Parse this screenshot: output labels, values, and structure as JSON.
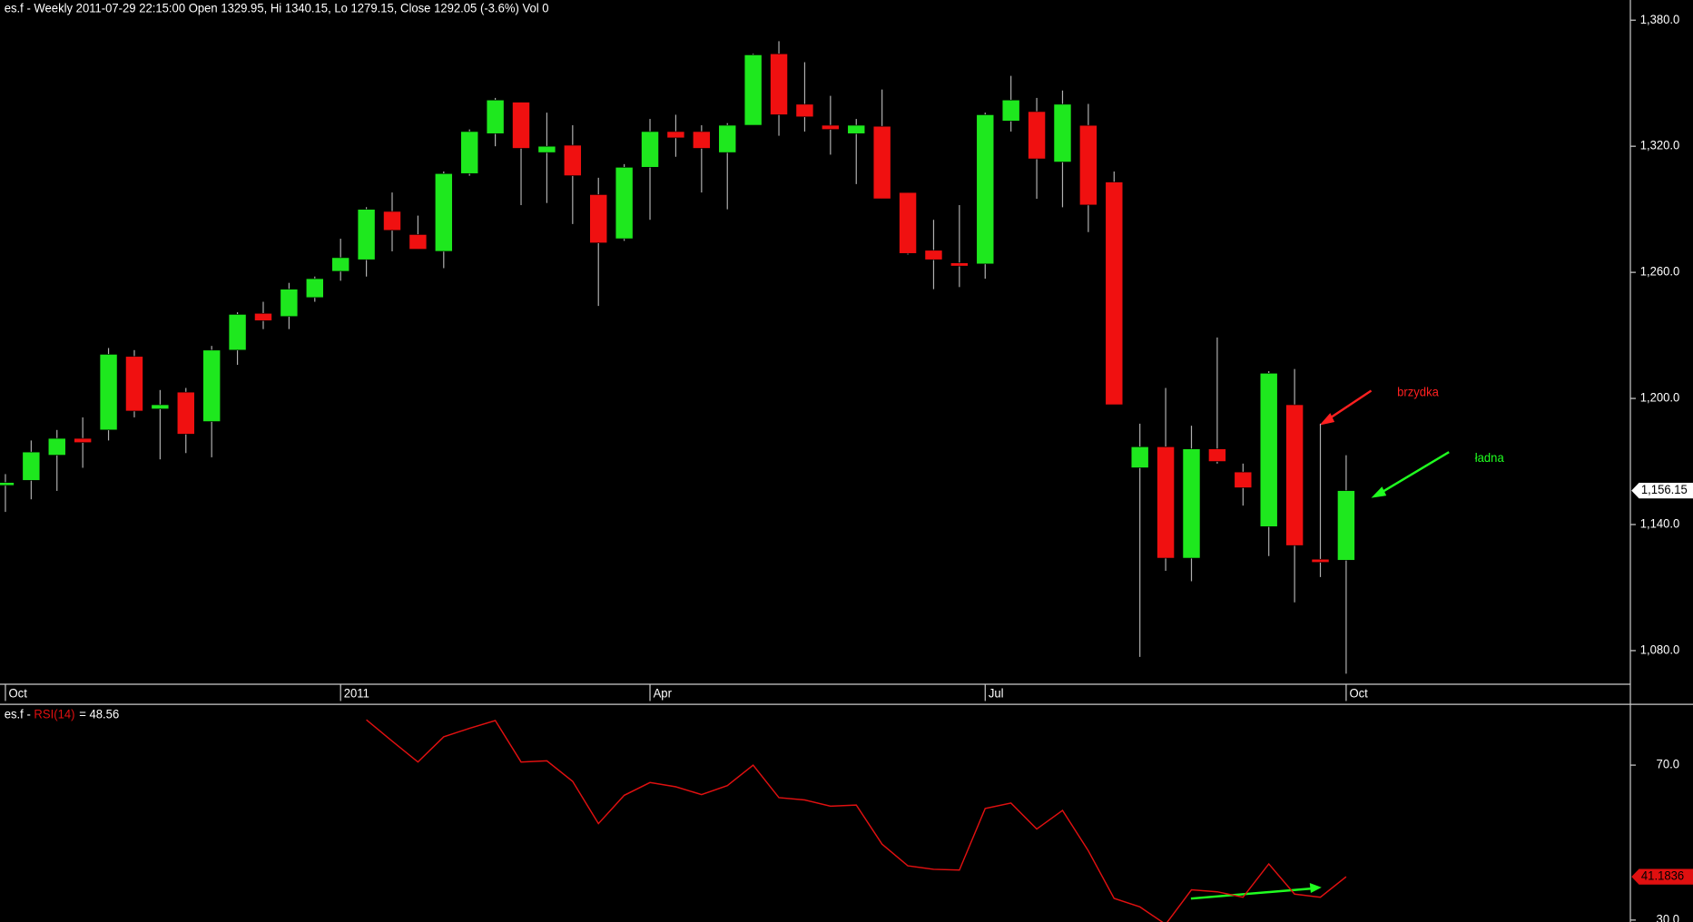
{
  "chart_data": [
    {
      "type": "candlestick",
      "title": "es.f - Weekly 2011-07-29 22:15:00 Open 1329.95, Hi 1340.15, Lo 1279.15, Close 1292.05 (-3.6%) Vol 0",
      "categories": [
        "Oct",
        null,
        null,
        null,
        null,
        null,
        null,
        null,
        null,
        null,
        null,
        null,
        null,
        "2011",
        null,
        null,
        null,
        null,
        null,
        null,
        null,
        null,
        null,
        null,
        null,
        "Apr",
        null,
        null,
        null,
        null,
        null,
        null,
        null,
        null,
        null,
        null,
        null,
        null,
        "Jul",
        null,
        null,
        null,
        null,
        null,
        null,
        null,
        null,
        null,
        null,
        null,
        null,
        null,
        "Oct"
      ],
      "open": [
        1158.6,
        1161,
        1173,
        1181,
        1185,
        1220,
        1195,
        1203,
        1189,
        1223,
        1240.5,
        1239,
        1248,
        1260.5,
        1266,
        1289,
        1278,
        1270,
        1307,
        1326,
        1341,
        1317,
        1320.5,
        1297,
        1276,
        1310,
        1327,
        1327,
        1317,
        1330,
        1364,
        1340,
        1330,
        1326,
        1329.5,
        1298,
        1270.5,
        1264.5,
        1264,
        1332,
        1336.5,
        1312.5,
        1329.95,
        1303,
        1167,
        1177,
        1124,
        1176,
        1165,
        1139,
        1197,
        1123.5,
        1123
      ],
      "high": [
        1164,
        1180,
        1185,
        1191,
        1224,
        1223,
        1204,
        1205,
        1225,
        1241,
        1246,
        1255,
        1258,
        1276,
        1291,
        1298,
        1287,
        1308,
        1328,
        1343,
        1341,
        1336,
        1330,
        1305,
        1311.5,
        1333,
        1335,
        1330,
        1331,
        1364,
        1370,
        1360,
        1344,
        1333,
        1347,
        1298,
        1285,
        1292,
        1336,
        1353.5,
        1343,
        1346.5,
        1340.15,
        1308,
        1188,
        1205,
        1187,
        1229,
        1169,
        1213,
        1214,
        1188,
        1173
      ],
      "low": [
        1146,
        1152,
        1156,
        1167,
        1180,
        1191,
        1171,
        1174,
        1172,
        1216,
        1233,
        1233,
        1246,
        1256,
        1258,
        1270,
        1271,
        1262,
        1306,
        1320,
        1292,
        1293,
        1283,
        1244,
        1275,
        1285,
        1315,
        1298,
        1290,
        1330,
        1325,
        1327,
        1316,
        1302,
        1295,
        1268.5,
        1252,
        1253,
        1257,
        1327,
        1295,
        1291,
        1279.15,
        1197,
        1077,
        1118,
        1113,
        1169,
        1149,
        1125,
        1103,
        1115,
        1069
      ],
      "close": [
        1160,
        1174.5,
        1181,
        1179,
        1221,
        1194,
        1197,
        1183,
        1223,
        1240,
        1237,
        1252,
        1257,
        1267,
        1290,
        1280,
        1271,
        1307,
        1327,
        1342,
        1319,
        1320,
        1306,
        1274,
        1310,
        1327,
        1324,
        1319,
        1330,
        1363.5,
        1335,
        1334,
        1328,
        1330,
        1295,
        1269,
        1266,
        1263,
        1335,
        1342,
        1314,
        1340,
        1292.05,
        1197,
        1177,
        1124,
        1176,
        1170,
        1157.5,
        1212,
        1130,
        1122,
        1156.15
      ],
      "up_color": "#1ee81e",
      "down_color": "#f01010",
      "ylim": [
        1064,
        1389.6
      ],
      "yticks": [
        {
          "value": 1080,
          "label": "1,080.0"
        },
        {
          "value": 1140,
          "label": "1,140.0"
        },
        {
          "value": 1200,
          "label": "1,200.0"
        },
        {
          "value": 1260,
          "label": "1,260.0"
        },
        {
          "value": 1320,
          "label": "1,320.0"
        },
        {
          "value": 1380,
          "label": "1,380.0"
        }
      ],
      "last_value": {
        "value": 1156.15,
        "label": "1,156.15"
      },
      "annotations": [
        {
          "text": "brzydka",
          "color": "#ff2020"
        },
        {
          "text": "ładna",
          "color": "#20ff20"
        }
      ]
    },
    {
      "type": "line",
      "title_prefix": "es.f - ",
      "title_name": "RSI(14)",
      "title_value": "= 48.56",
      "series": [
        {
          "name": "RSI(14)",
          "color": "#e01010",
          "values": [
            null,
            null,
            null,
            null,
            null,
            null,
            null,
            null,
            null,
            null,
            null,
            null,
            null,
            null,
            81.7,
            76.2,
            70.8,
            77.3,
            79.5,
            81.5,
            70.8,
            71.1,
            65.8,
            54.9,
            62.2,
            65.5,
            64.4,
            62.4,
            64.7,
            70,
            61.6,
            61.0,
            59.4,
            59.7,
            49.6,
            44.0,
            43.1,
            42.9,
            58.8,
            60.2,
            53.5,
            58.3,
            47.9,
            35.6,
            33.4,
            28.9,
            37.8,
            37.3,
            35.9,
            44.5,
            36.7,
            35.9,
            41.1836
          ]
        }
      ],
      "ylim": [
        29.5,
        85.4
      ],
      "yticks": [
        {
          "value": 30,
          "label": "30.0"
        },
        {
          "value": 70,
          "label": "70.0"
        }
      ],
      "last_value": {
        "value": 41.1836,
        "label": "41.1836"
      }
    }
  ]
}
